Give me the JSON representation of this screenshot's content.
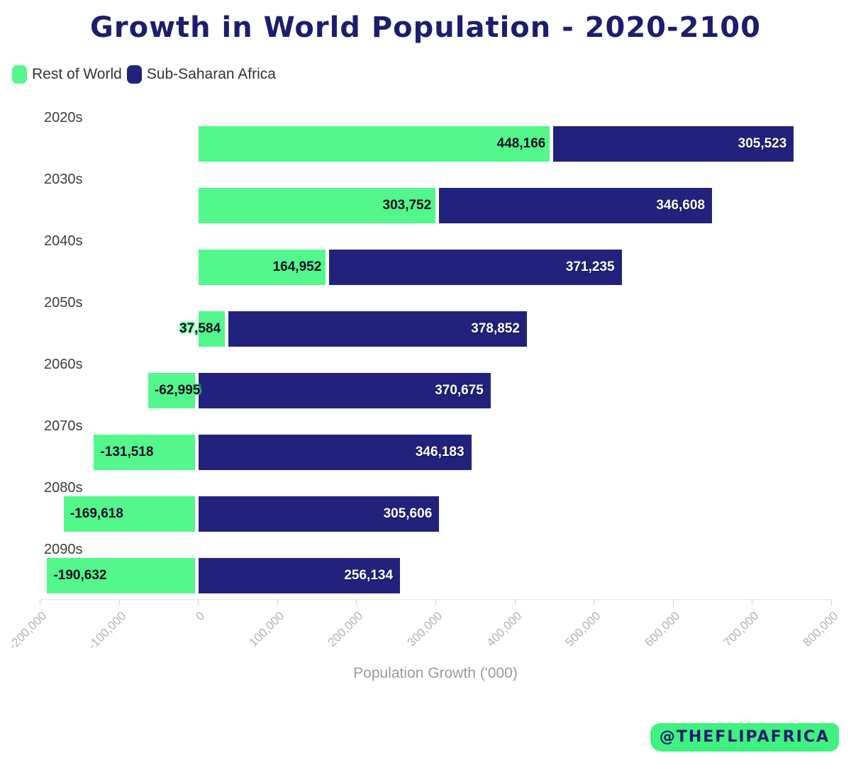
{
  "chart": {
    "title": "Growth in World Population - 2020-2100",
    "xaxis_title": "Population Growth ('000)",
    "watermark": "@THEFLIPAFRICA"
  },
  "colors": {
    "green": "#54f78c",
    "navy": "#22227c",
    "title_navy": "#1d1d6e",
    "category_label": "#3d3d3d",
    "tick_label": "#b4b4b4",
    "axis_title": "#9b9b9b",
    "watermark_bg": "#3ef27f"
  },
  "chart_data": {
    "type": "bar",
    "orientation": "horizontal",
    "stacked": true,
    "title": "Growth in World Population - 2020-2100",
    "xlabel": "Population Growth ('000)",
    "categories": [
      "2020s",
      "2030s",
      "2040s",
      "2050s",
      "2060s",
      "2070s",
      "2080s",
      "2090s"
    ],
    "series": [
      {
        "name": "Rest of World",
        "color": "#54f78c",
        "values": [
          448166,
          303752,
          164952,
          37584,
          -62995,
          -131518,
          -169618,
          -190632
        ],
        "labels": [
          "448,166",
          "303,752",
          "164,952",
          "37,584",
          "-62,995",
          "-131,518",
          "-169,618",
          "-190,632"
        ]
      },
      {
        "name": "Sub-Saharan Africa",
        "color": "#22227c",
        "values": [
          305523,
          346608,
          371235,
          378852,
          370675,
          346183,
          305606,
          256134
        ],
        "labels": [
          "305,523",
          "346,608",
          "371,235",
          "378,852",
          "370,675",
          "346,183",
          "305,606",
          "256,134"
        ]
      }
    ],
    "xlim": [
      -200000,
      800000
    ],
    "xticks": [
      -200000,
      -100000,
      0,
      100000,
      200000,
      300000,
      400000,
      500000,
      600000,
      700000,
      800000
    ],
    "xtick_labels": [
      "-200,000",
      "-100,000",
      "0",
      "100,000",
      "200,000",
      "300,000",
      "400,000",
      "500,000",
      "600,000",
      "700,000",
      "800,000"
    ],
    "legend_position": "top-left",
    "grid": false
  }
}
